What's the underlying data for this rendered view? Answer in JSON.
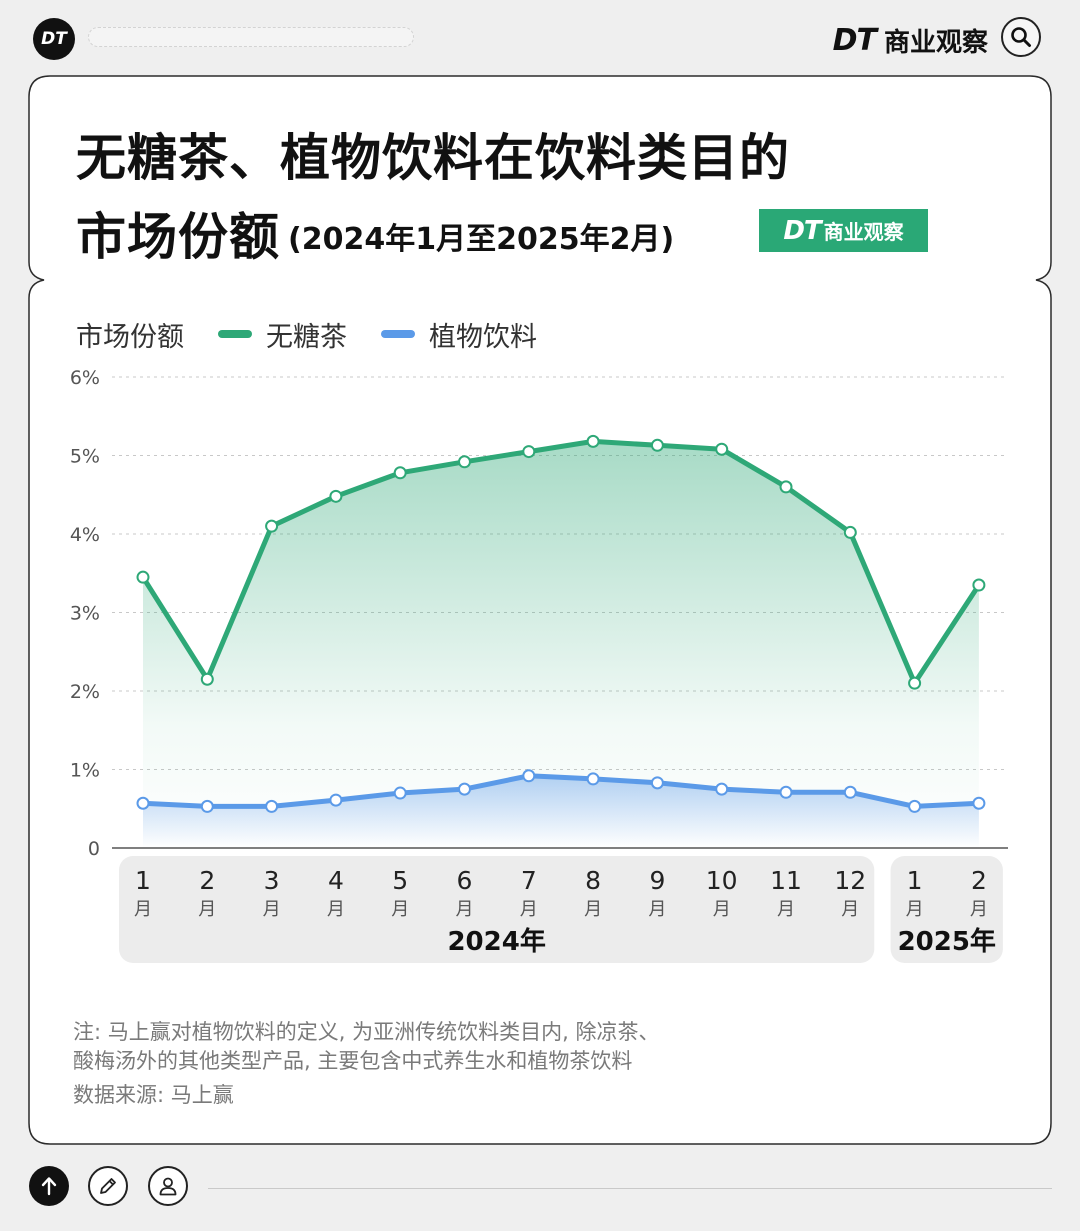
{
  "header": {
    "logo_text": "DT",
    "brand_dt": "DT",
    "brand_name": "商业观察",
    "search_icon": "search-icon"
  },
  "card": {
    "title_line1": "无糖茶、植物饮料在饮料类目的",
    "title_line2_main": "市场份额",
    "title_line2_range": "(2024年1月至2025年2月)",
    "badge_dt": "DT",
    "badge_name": "商业观察"
  },
  "legend": {
    "label": "市场份额",
    "items": [
      {
        "name": "无糖茶",
        "color": "#2ea877"
      },
      {
        "name": "植物饮料",
        "color": "#5b9ae8"
      }
    ]
  },
  "chart_data": {
    "type": "line",
    "ylabel": "市场份额",
    "ylim": [
      0,
      6
    ],
    "y_ticks": [
      "0",
      "1%",
      "2%",
      "3%",
      "4%",
      "5%",
      "6%"
    ],
    "grid": true,
    "categories": [
      {
        "num": "1",
        "unit": "月"
      },
      {
        "num": "2",
        "unit": "月"
      },
      {
        "num": "3",
        "unit": "月"
      },
      {
        "num": "4",
        "unit": "月"
      },
      {
        "num": "5",
        "unit": "月"
      },
      {
        "num": "6",
        "unit": "月"
      },
      {
        "num": "7",
        "unit": "月"
      },
      {
        "num": "8",
        "unit": "月"
      },
      {
        "num": "9",
        "unit": "月"
      },
      {
        "num": "10",
        "unit": "月"
      },
      {
        "num": "11",
        "unit": "月"
      },
      {
        "num": "12",
        "unit": "月"
      },
      {
        "num": "1",
        "unit": "月"
      },
      {
        "num": "2",
        "unit": "月"
      }
    ],
    "year_groups": [
      {
        "label": "2024年",
        "count": 12
      },
      {
        "label": "2025年",
        "count": 2
      }
    ],
    "series": [
      {
        "name": "无糖茶",
        "color": "#2ea877",
        "values": [
          3.45,
          2.15,
          4.1,
          4.48,
          4.78,
          4.92,
          5.05,
          5.18,
          5.13,
          5.08,
          4.6,
          4.02,
          2.1,
          3.35
        ]
      },
      {
        "name": "植物饮料",
        "color": "#5b9ae8",
        "values": [
          0.57,
          0.53,
          0.53,
          0.61,
          0.7,
          0.75,
          0.92,
          0.88,
          0.83,
          0.75,
          0.71,
          0.71,
          0.53,
          0.57
        ]
      }
    ]
  },
  "notes": {
    "note_line1": "注: 马上赢对植物饮料的定义, 为亚洲传统饮料类目内, 除凉茶、",
    "note_line2": "酸梅汤外的其他类型产品, 主要包含中式养生水和植物茶饮料",
    "source": "数据来源: 马上赢"
  },
  "bottom_bar": {
    "icons": [
      "arrow-up-icon",
      "pencil-icon",
      "person-icon"
    ]
  }
}
